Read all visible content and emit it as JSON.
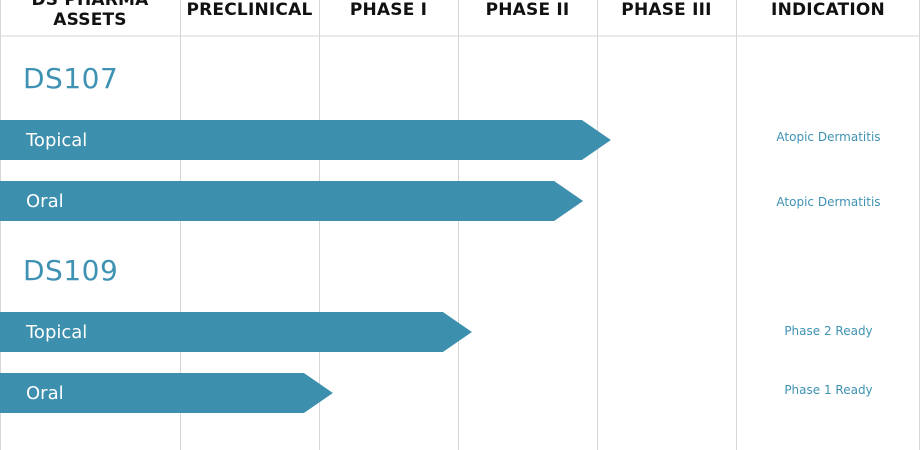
{
  "chart_data": {
    "type": "bar",
    "orientation": "horizontal",
    "stages": [
      "PRECLINICAL",
      "PHASE I",
      "PHASE II",
      "PHASE III"
    ],
    "headers": {
      "assets": "DS PHARMA\nASSETS",
      "preclinical": "PRECLINICAL",
      "phase1": "PHASE I",
      "phase2": "PHASE II",
      "phase3": "PHASE III",
      "indication": "INDICATION"
    },
    "assets": [
      {
        "name": "DS107",
        "programs": [
          {
            "route": "Topical",
            "progress": 3.1,
            "indication": "Atopic Dermatitis"
          },
          {
            "route": "Oral",
            "progress": 2.9,
            "indication": "Atopic Dermatitis"
          }
        ]
      },
      {
        "name": "DS109",
        "programs": [
          {
            "route": "Topical",
            "progress": 2.1,
            "indication": "Phase 2 Ready"
          },
          {
            "route": "Oral",
            "progress": 1.1,
            "indication": "Phase 1 Ready"
          }
        ]
      }
    ],
    "colors": {
      "bar": "#3d8fae",
      "accent_text": "#3f92b3",
      "grid": "#d6d6d6",
      "header_text": "#111111"
    }
  }
}
